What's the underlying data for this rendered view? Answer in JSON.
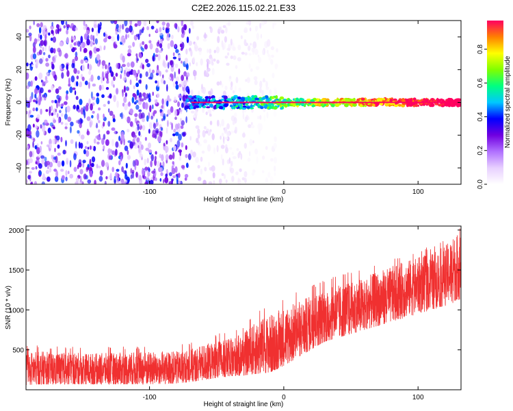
{
  "figure": {
    "title": "C2E2.2026.115.02.21.E33"
  },
  "chart_data": [
    {
      "type": "heatmap",
      "title": "C2E2.2026.115.02.21.E33",
      "xlabel": "Height of straight line (km)",
      "ylabel": "Frequency (Hz)",
      "xlim": [
        -192,
        132
      ],
      "ylim": [
        -50,
        50
      ],
      "x_ticks": [
        -100,
        0,
        100
      ],
      "x_tick_labels": [
        "-100",
        "0",
        "100"
      ],
      "y_ticks": [
        -40,
        -20,
        0,
        20,
        40
      ],
      "y_tick_labels": [
        "-40",
        "-20",
        "0",
        "20",
        "40"
      ],
      "colorbar": {
        "label": "Normalized spectral amplitude",
        "range": [
          0,
          0.97
        ],
        "ticks": [
          0,
          0.2,
          0.4,
          0.6,
          0.8
        ],
        "tick_labels": [
          "0.0",
          "0.2",
          "0.4",
          "0.6",
          "0.8"
        ],
        "colormap": [
          "#ffffff",
          "#e8d0ff",
          "#b070ff",
          "#7000e0",
          "#0000ff",
          "#00c8ff",
          "#00ff80",
          "#80ff00",
          "#ffff00",
          "#ff8000",
          "#ff0060"
        ]
      },
      "regions": [
        {
          "description": "broadband scatter",
          "x_range": [
            -192,
            -70
          ],
          "freq_range": [
            -50,
            50
          ],
          "amplitude": 0.15
        },
        {
          "description": "fading scatter",
          "x_range": [
            -70,
            -5
          ],
          "freq_range": [
            -50,
            50
          ],
          "amplitude": 0.05
        },
        {
          "description": "carrier line",
          "x_range": [
            -72,
            132
          ],
          "freq_center": 0,
          "freq_halfwidth": 2,
          "amplitude": 0.9
        }
      ],
      "grid": false
    },
    {
      "type": "line",
      "xlabel": "Height of straight line (km)",
      "ylabel": "SNR (10 * v/v)",
      "xlim": [
        -192,
        132
      ],
      "ylim": [
        0,
        2050
      ],
      "x_ticks": [
        -100,
        0,
        100
      ],
      "x_tick_labels": [
        "-100",
        "0",
        "100"
      ],
      "y_ticks": [
        500,
        1000,
        1500,
        2000
      ],
      "y_tick_labels": [
        "500",
        "1000",
        "1500",
        "2000"
      ],
      "color": "#f03030",
      "grid": false,
      "series": [
        {
          "x": [
            -192,
            -180,
            -160,
            -140,
            -120,
            -100,
            -80,
            -70,
            -60,
            -50,
            -40,
            -30,
            -20,
            -10,
            0,
            10,
            20,
            30,
            40,
            50,
            60,
            70,
            80,
            90,
            100,
            110,
            120,
            130
          ],
          "y": [
            250,
            260,
            255,
            250,
            255,
            260,
            265,
            280,
            330,
            350,
            380,
            430,
            500,
            550,
            650,
            720,
            820,
            900,
            950,
            1000,
            1050,
            1120,
            1180,
            1250,
            1300,
            1350,
            1420,
            1550
          ],
          "y_min": [
            60,
            70,
            70,
            70,
            70,
            70,
            80,
            100,
            120,
            150,
            170,
            180,
            200,
            220,
            300,
            400,
            500,
            600,
            650,
            700,
            750,
            800,
            850,
            900,
            950,
            1000,
            1050,
            1100
          ],
          "y_max": [
            550,
            560,
            540,
            530,
            540,
            560,
            560,
            600,
            650,
            700,
            750,
            800,
            1000,
            1100,
            1150,
            1250,
            1300,
            1380,
            1450,
            1480,
            1550,
            1600,
            1650,
            1700,
            1750,
            1800,
            1900,
            2050
          ]
        }
      ]
    }
  ]
}
